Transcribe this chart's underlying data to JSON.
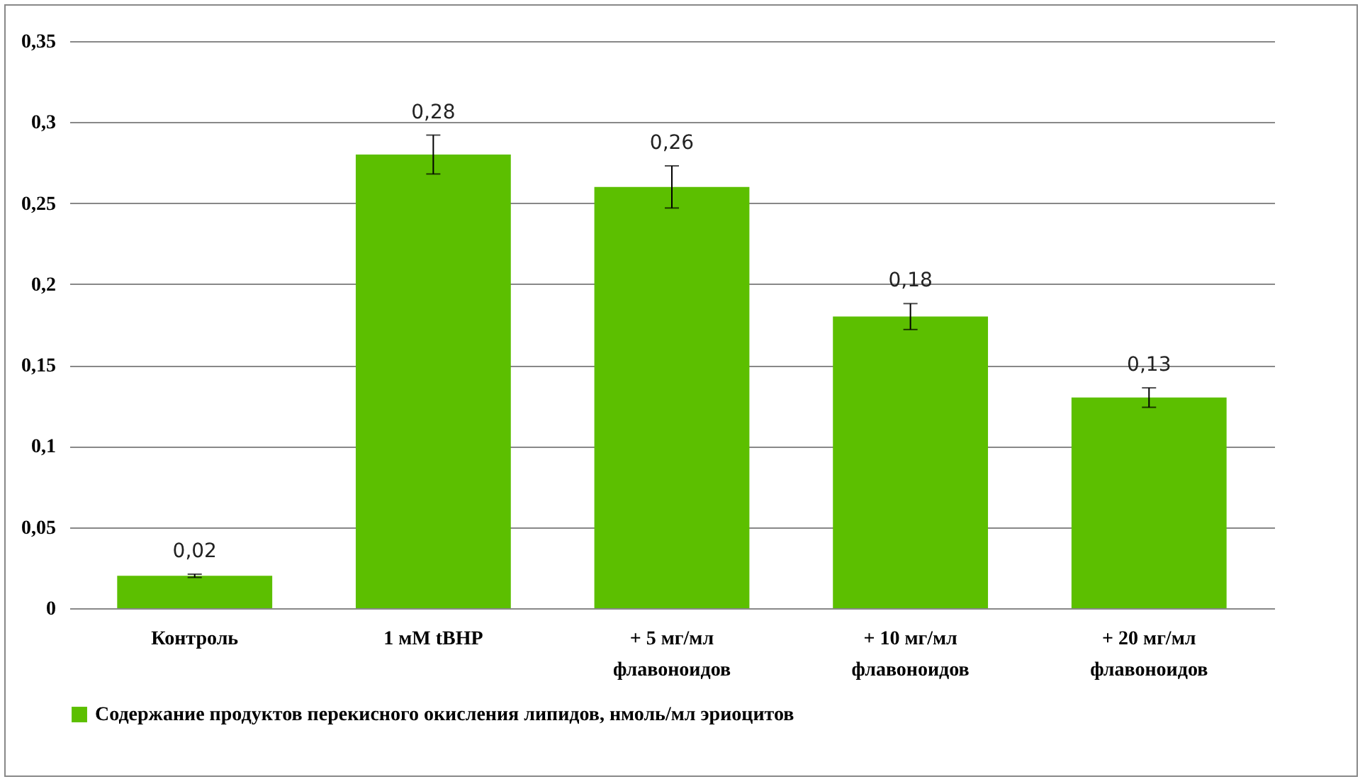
{
  "chart_data": {
    "type": "bar",
    "categories": [
      "Контроль",
      "1 мМ tBHP",
      "+ 5 мг/мл\nфлавоноидов",
      "+ 10 мг/мл\nфлавоноидов",
      "+ 20 мг/мл\nфлавоноидов"
    ],
    "series": [
      {
        "name": "Содержание продуктов перекисного окисления липидов, нмоль/мл эриоцитов",
        "color": "#5cbf00",
        "values": [
          0.02,
          0.28,
          0.26,
          0.18,
          0.13
        ],
        "errors": [
          0.001,
          0.012,
          0.013,
          0.008,
          0.006
        ],
        "value_labels": [
          "0,02",
          "0,28",
          "0,26",
          "0,18",
          "0,13"
        ]
      }
    ],
    "ylim": [
      0,
      0.35
    ],
    "yticks": [
      {
        "value": 0,
        "label": "0"
      },
      {
        "value": 0.05,
        "label": "0,05"
      },
      {
        "value": 0.1,
        "label": "0,1"
      },
      {
        "value": 0.15,
        "label": "0,15"
      },
      {
        "value": 0.2,
        "label": "0,2"
      },
      {
        "value": 0.25,
        "label": "0,25"
      },
      {
        "value": 0.3,
        "label": "0,3"
      },
      {
        "value": 0.35,
        "label": "0,35"
      }
    ],
    "grid": "y",
    "legend": "bottom"
  }
}
